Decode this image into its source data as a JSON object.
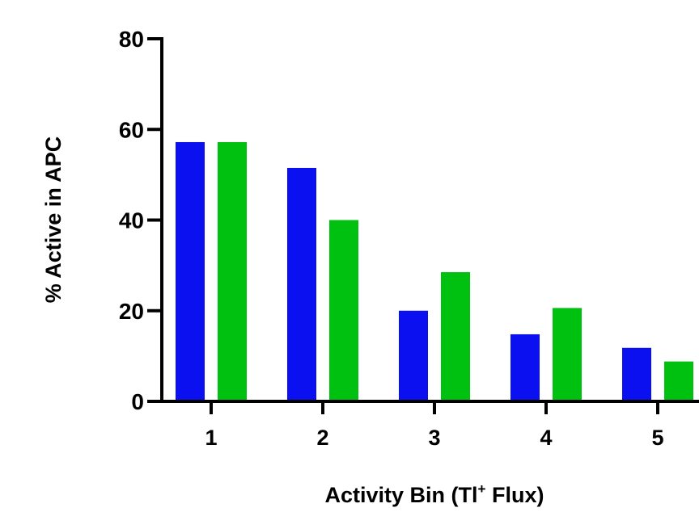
{
  "chart_data": {
    "type": "bar",
    "title": "",
    "xlabel": "Activity Bin (Tl",
    "xlabel_sup": "+",
    "xlabel_suffix": " Flux)",
    "ylabel": "% Active in APC",
    "categories": [
      "1",
      "2",
      "3",
      "4",
      "5"
    ],
    "ylim": [
      0,
      80
    ],
    "yticks": [
      "0",
      "20",
      "40",
      "60",
      "80"
    ],
    "grid": false,
    "series": [
      {
        "color": "#0a10f0",
        "values": [
          57.2,
          51.5,
          20.0,
          14.8,
          11.8
        ]
      },
      {
        "color": "#00c010",
        "values": [
          57.2,
          40.0,
          28.5,
          20.6,
          8.8
        ]
      }
    ]
  }
}
